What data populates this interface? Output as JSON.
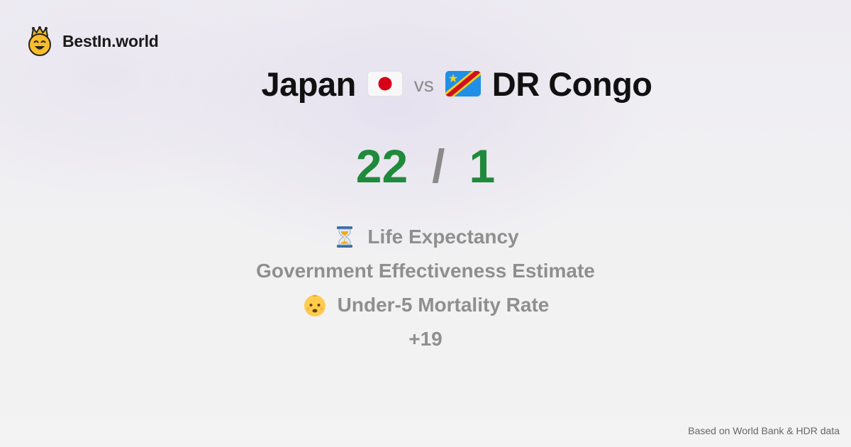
{
  "brand": {
    "name": "BestIn.world",
    "logo_icon": "crown-smiley-icon"
  },
  "comparison": {
    "left_country": "Japan",
    "left_flag_icon": "japan-flag-icon",
    "vs_label": "vs",
    "right_country": "DR Congo",
    "right_flag_icon": "dr-congo-flag-icon"
  },
  "score": {
    "left": "22",
    "separator": "/",
    "right": "1"
  },
  "metrics": [
    {
      "label": "Life Expectancy",
      "icon": "hourglass-icon"
    },
    {
      "label": "Government Effectiveness Estimate",
      "icon": ""
    },
    {
      "label": "Under-5 Mortality Rate",
      "icon": "baby-icon"
    }
  ],
  "more_count": "+19",
  "footer": {
    "source": "Based on World Bank & HDR data"
  },
  "colors": {
    "score_green": "#1f8a3b",
    "muted_gray": "#8f8f8f",
    "text_dark": "#111111"
  }
}
